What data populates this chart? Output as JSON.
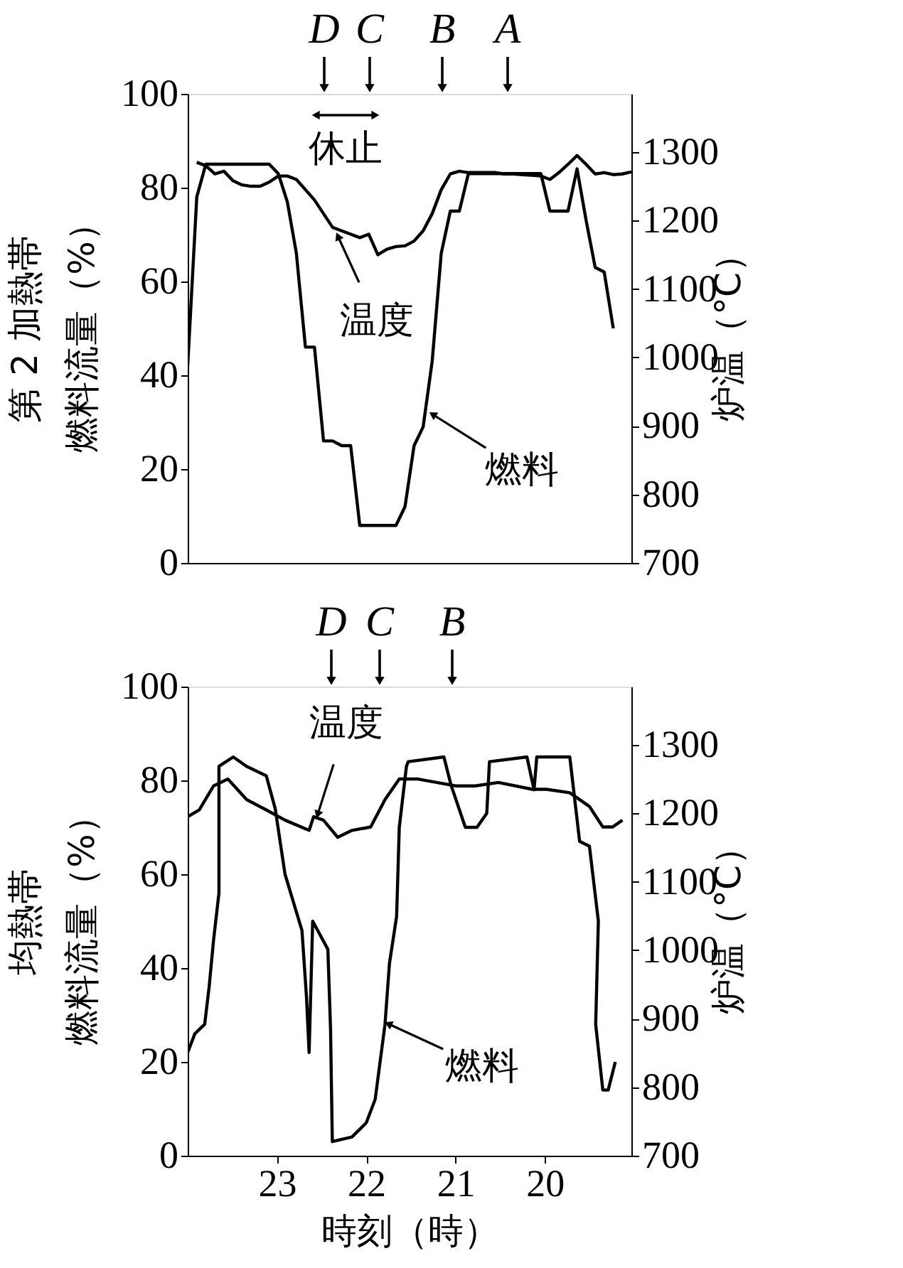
{
  "chart_data": [
    {
      "type": "line",
      "ylabel": "第 2 加熱帯燃料流量（%）",
      "y2label": "炉温（°C）",
      "ylim": [
        0,
        100
      ],
      "yticks": [
        0,
        20,
        40,
        60,
        80,
        100
      ],
      "y2lim": [
        700,
        1385
      ],
      "y2ticks": [
        700,
        800,
        900,
        1000,
        1100,
        1200,
        1300
      ],
      "tick_labels": "y",
      "grid": false,
      "categories": [
        null,
        null,
        null,
        null,
        null,
        null,
        null,
        null,
        null,
        null,
        null,
        null,
        null,
        null,
        null,
        null,
        null,
        null,
        null,
        null,
        null,
        null,
        null,
        null,
        null,
        null,
        null,
        null,
        null,
        null,
        null,
        null,
        null,
        null,
        null,
        null,
        null,
        null,
        null,
        null,
        null,
        null,
        null,
        null,
        null,
        null,
        null,
        null,
        null,
        null
      ],
      "series": [
        {
          "color": "#000000",
          "values": [
            42,
            78,
            85,
            85,
            85,
            85,
            85,
            85,
            85,
            85,
            83,
            77,
            66,
            46,
            46,
            26,
            26,
            25,
            25,
            8,
            8,
            8,
            8,
            8,
            12,
            25,
            29,
            43,
            66,
            75,
            75,
            83,
            83,
            83,
            83,
            83,
            83,
            83,
            83,
            83,
            75,
            75,
            75,
            84,
            73,
            63,
            62,
            50,
            null,
            null
          ]
        },
        {
          "color": "#000000",
          "axis": "y2",
          "values": [
            null,
            1285,
            1280,
            1268,
            1272,
            1258,
            1252,
            1250,
            1250,
            1256,
            1265,
            1265,
            1260,
            1245,
            1230,
            1210,
            1190,
            1185,
            1180,
            1175,
            1180,
            1150,
            1158,
            1162,
            1163,
            1170,
            1185,
            1210,
            1245,
            1268,
            1272,
            1270,
            1270,
            1270,
            1270,
            1268,
            1268,
            1267,
            1266,
            1265,
            1260,
            1270,
            1282,
            1295,
            1282,
            1268,
            1270,
            1267,
            1268,
            1271
          ]
        }
      ],
      "annotations": [
        "D",
        "C",
        "B",
        "A",
        "休止",
        "温度",
        "燃料"
      ]
    },
    {
      "type": "line",
      "ylabel": "均熱帯燃料流量（%）",
      "y2label": "炉温（°C）",
      "xlabel": "時刻（時）",
      "xlim": [
        24.0,
        19.03
      ],
      "xticks": [
        23,
        22,
        21,
        20
      ],
      "ylim": [
        0,
        100
      ],
      "yticks": [
        0,
        20,
        40,
        60,
        80,
        100
      ],
      "y2lim": [
        700,
        1385
      ],
      "y2ticks": [
        700,
        800,
        900,
        1000,
        1100,
        1200,
        1300
      ],
      "grid": false,
      "series": [
        {
          "color": "#000000",
          "x": [
            24.0,
            23.92,
            23.81,
            23.76,
            23.71,
            23.65,
            23.65,
            23.49,
            23.34,
            23.12,
            23.02,
            22.91,
            22.72,
            22.67,
            22.64,
            22.6,
            22.43,
            22.4,
            22.38,
            22.16,
            22.0,
            21.9,
            21.79,
            21.74,
            21.66,
            21.63,
            21.55,
            21.53,
            21.13,
            21.05,
            20.89,
            20.76,
            20.65,
            20.62,
            20.2,
            20.12,
            20.09,
            19.72,
            19.61,
            19.5,
            19.4,
            19.43,
            19.35,
            19.29,
            19.21
          ],
          "values": [
            22,
            26,
            28,
            36,
            46,
            56,
            83,
            85,
            83,
            81,
            74,
            60,
            48,
            34,
            22,
            50,
            44,
            27,
            3,
            4,
            7,
            12,
            28,
            41,
            51,
            70,
            83,
            84,
            85,
            79,
            70,
            70,
            73,
            84,
            85,
            78,
            85,
            85,
            67,
            66,
            50,
            28,
            14,
            14,
            20
          ]
        },
        {
          "color": "#000000",
          "axis": "y2",
          "x": [
            24.0,
            23.87,
            23.71,
            23.55,
            23.34,
            23.12,
            22.91,
            22.64,
            22.59,
            22.48,
            22.32,
            22.16,
            21.95,
            21.79,
            21.63,
            21.42,
            21.0,
            20.78,
            20.52,
            20.14,
            19.98,
            19.72,
            19.5,
            19.35,
            19.24,
            19.13
          ],
          "values": [
            1195,
            1205,
            1240,
            1250,
            1220,
            1205,
            1190,
            1175,
            1195,
            1190,
            1165,
            1175,
            1180,
            1220,
            1250,
            1250,
            1240,
            1240,
            1245,
            1235,
            1235,
            1230,
            1210,
            1180,
            1180,
            1190
          ]
        }
      ],
      "annotations": [
        "D",
        "C",
        "B",
        {
          "text": "温度",
          "x": 22.54,
          "y": 73
        },
        {
          "text": "燃料",
          "x": 21.74,
          "y": 28
        }
      ]
    }
  ]
}
